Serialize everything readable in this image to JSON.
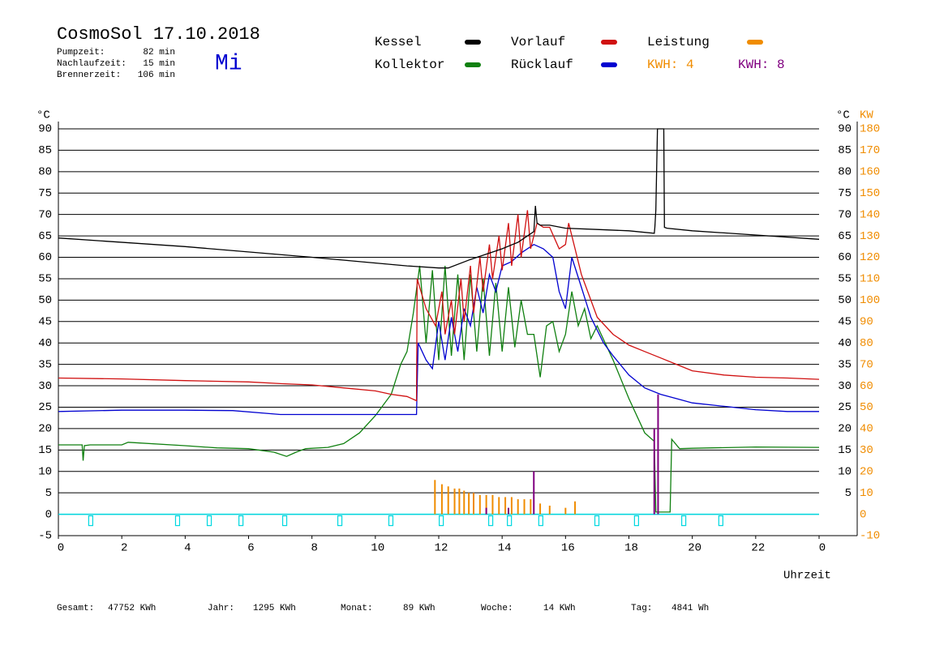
{
  "header": {
    "title": "CosmoSol 17.10.2018",
    "weekday": "Mi",
    "stats": [
      {
        "label": "Pumpzeit:",
        "value": "82 min"
      },
      {
        "label": "Nachlaufzeit:",
        "value": "15 min"
      },
      {
        "label": "Brennerzeit:",
        "value": "106 min"
      }
    ]
  },
  "legend_extra": [
    {
      "label": "KWH: 4",
      "color": "#f08c00"
    }
  ],
  "chart_data": {
    "type": "line",
    "xlabel": "Uhrzeit",
    "ylabel": "°C",
    "ylabel_right": "°C",
    "y2label": "KW",
    "xlim": [
      0,
      24
    ],
    "xticks": [
      0,
      2,
      4,
      6,
      8,
      10,
      12,
      14,
      16,
      18,
      20,
      22,
      {
        "value": 24,
        "label": "0"
      }
    ],
    "ylim": [
      -5,
      90
    ],
    "yticks": [
      -5,
      0,
      5,
      10,
      15,
      20,
      25,
      30,
      35,
      40,
      45,
      50,
      55,
      60,
      65,
      70,
      75,
      80,
      85,
      90
    ],
    "yticks_right": [
      5,
      10,
      15,
      20,
      25,
      30,
      35,
      40,
      45,
      50,
      55,
      60,
      65,
      70,
      75,
      80,
      85,
      90
    ],
    "y2lim": [
      -10,
      180
    ],
    "y2ticks": [
      -10,
      0,
      10,
      20,
      30,
      40,
      50,
      60,
      70,
      80,
      90,
      100,
      110,
      120,
      130,
      140,
      150,
      160,
      170,
      180
    ],
    "y2color": "#f08c00",
    "grid": true,
    "series": [
      {
        "name": "Kessel",
        "color": "#000000",
        "style": "line",
        "x": [
          0,
          4,
          8,
          11,
          12,
          12.3,
          13,
          14,
          14.5,
          15,
          15.05,
          15.1,
          15.2,
          15.5,
          16,
          17,
          18,
          18.8,
          18.82,
          18.85,
          18.9,
          18.95,
          19.1,
          19.12,
          19.2,
          20,
          22,
          24
        ],
        "values": [
          64.5,
          62.5,
          60,
          58,
          57.5,
          57.5,
          59.5,
          62,
          63.5,
          66,
          72,
          68,
          67.5,
          67.5,
          66.8,
          66.5,
          66.2,
          65.6,
          67,
          71,
          90,
          90,
          90,
          67,
          66.8,
          66.2,
          65.2,
          64.2
        ]
      },
      {
        "name": "Vorlauf",
        "color": "#d01010",
        "style": "line",
        "x": [
          0,
          2,
          4,
          6,
          7,
          8,
          9,
          10,
          10.5,
          11,
          11.3,
          11.32,
          11.6,
          11.9,
          12.1,
          12.2,
          12.4,
          12.5,
          12.7,
          12.8,
          13.0,
          13.1,
          13.3,
          13.4,
          13.6,
          13.7,
          13.9,
          14.0,
          14.2,
          14.3,
          14.5,
          14.6,
          14.8,
          14.9,
          15.1,
          15.3,
          15.5,
          15.8,
          16.0,
          16.1,
          16.3,
          16.5,
          16.8,
          17.0,
          17.5,
          18,
          18.5,
          19,
          19.5,
          20,
          21,
          22,
          23,
          24
        ],
        "values": [
          31.8,
          31.6,
          31.2,
          30.9,
          30.5,
          30.2,
          29.5,
          28.8,
          28,
          27.5,
          26.5,
          55,
          48,
          44,
          52,
          42,
          50,
          42,
          55,
          45,
          58,
          47,
          60,
          52,
          63,
          55,
          65,
          57,
          68,
          58,
          70,
          60,
          71,
          62,
          68,
          67,
          67,
          62,
          63,
          68,
          62,
          56,
          50,
          46,
          42,
          39.5,
          38,
          36.5,
          35,
          33.5,
          32.5,
          32,
          31.8,
          31.5
        ]
      },
      {
        "name": "Leistung",
        "color": "#f08c00",
        "style": "stem",
        "axis": "y2",
        "x": [
          11.88,
          12.1,
          12.3,
          12.5,
          12.65,
          12.8,
          12.95,
          13.1,
          13.3,
          13.5,
          13.7,
          13.9,
          14.1,
          14.3,
          14.5,
          14.7,
          14.9,
          15.2,
          15.5,
          16.0,
          16.3
        ],
        "values": [
          16,
          14,
          13,
          12,
          12,
          11,
          10,
          10,
          9,
          9,
          9,
          8,
          8,
          8,
          7,
          7,
          7,
          5,
          4,
          3,
          6
        ]
      },
      {
        "name": "Kollektor",
        "color": "#108010",
        "style": "line",
        "x": [
          0,
          0.75,
          0.78,
          0.82,
          1,
          2,
          2.2,
          4,
          5,
          6,
          6.8,
          7.2,
          7.5,
          7.8,
          8.5,
          9,
          9.5,
          10,
          10.5,
          10.8,
          11,
          11.2,
          11.4,
          11.6,
          11.8,
          12.0,
          12.2,
          12.4,
          12.6,
          12.8,
          13.0,
          13.2,
          13.4,
          13.6,
          13.8,
          14.0,
          14.2,
          14.4,
          14.6,
          14.8,
          15.0,
          15.2,
          15.4,
          15.6,
          15.8,
          16.0,
          16.2,
          16.4,
          16.6,
          16.8,
          17.0,
          17.5,
          18,
          18.5,
          18.8,
          18.85,
          19.3,
          19.35,
          19.6,
          20,
          22,
          24
        ],
        "values": [
          16.2,
          16.2,
          12.5,
          16,
          16.2,
          16.2,
          16.8,
          16,
          15.5,
          15.3,
          14.5,
          13.5,
          14.5,
          15.3,
          15.6,
          16.5,
          19,
          23,
          28,
          35,
          38,
          47,
          58,
          40,
          57,
          36,
          58,
          37,
          56,
          36,
          56,
          38,
          55,
          37,
          54,
          38,
          53,
          39,
          50,
          42,
          42,
          32,
          44,
          45,
          38,
          42,
          52,
          44,
          48,
          41,
          44,
          36,
          27,
          19,
          17,
          0.5,
          0.5,
          17.5,
          15.3,
          15.4,
          15.7,
          15.6
        ]
      },
      {
        "name": "Rücklauf",
        "color": "#0000d0",
        "style": "line",
        "x": [
          0,
          2,
          4,
          5.5,
          7,
          9,
          11.3,
          11.35,
          11.6,
          11.8,
          12.0,
          12.2,
          12.4,
          12.6,
          12.8,
          13.0,
          13.2,
          13.4,
          13.6,
          13.8,
          14.0,
          14.3,
          14.6,
          15.0,
          15.3,
          15.6,
          15.8,
          16.0,
          16.2,
          16.5,
          16.8,
          17.2,
          17.5,
          18,
          18.5,
          19,
          19.5,
          20,
          21,
          22,
          23,
          24
        ],
        "values": [
          24,
          24.3,
          24.3,
          24.2,
          23.3,
          23.3,
          23.3,
          40,
          36,
          34,
          45,
          36,
          46,
          38,
          48,
          44,
          53,
          47,
          56,
          52,
          58,
          59,
          61,
          63,
          62,
          60,
          52,
          48,
          60,
          53,
          46,
          40,
          37,
          32.5,
          29.5,
          28,
          27,
          26,
          25.2,
          24.4,
          24,
          24
        ]
      },
      {
        "name": "KWH: 8",
        "color": "#800080",
        "style": "stem",
        "axis": "y2",
        "legend_marker": false,
        "x": [
          13.5,
          14.2,
          15.0,
          18.8,
          18.92
        ],
        "values": [
          3,
          3,
          20,
          40,
          56
        ]
      }
    ],
    "pump_markers": {
      "color": "#00d8e0",
      "x": [
        1.02,
        3.76,
        4.76,
        5.76,
        7.14,
        8.88,
        10.49,
        12.08,
        13.64,
        14.23,
        15.22,
        16.99,
        18.24,
        19.73,
        20.9
      ]
    }
  },
  "footer": {
    "totals": [
      {
        "label": "Gesamt:",
        "value": "47752 KWh"
      },
      {
        "label": "Jahr:",
        "value": "1295 KWh"
      },
      {
        "label": "Monat:",
        "value": "89 KWh"
      },
      {
        "label": "Woche:",
        "value": "14 KWh"
      },
      {
        "label": "Tag:",
        "value": "4841 Wh"
      }
    ]
  }
}
